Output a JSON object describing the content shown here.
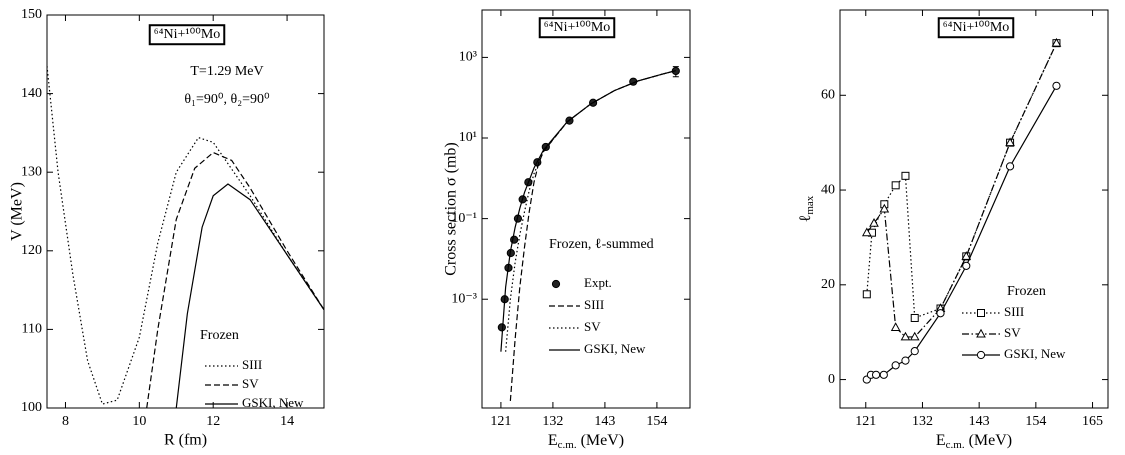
{
  "chart_data": [
    {
      "type": "line",
      "title": "⁶⁴Ni+¹⁰⁰Mo",
      "annotations": [
        "T=1.29 MeV",
        "θ₁=90⁰, θ₂=90⁰"
      ],
      "x_label": "R (fm)",
      "y_label": "V (MeV)",
      "xlim": [
        7.5,
        15
      ],
      "xticks": [
        8,
        10,
        12,
        14
      ],
      "ylim": [
        100,
        150
      ],
      "yticks": [
        100,
        110,
        120,
        130,
        140,
        150
      ],
      "legend_title": "Frozen",
      "series": [
        {
          "name": "SIII",
          "color": "#000000",
          "style": "dotted",
          "x": [
            7.5,
            7.8,
            8.2,
            8.6,
            9.0,
            9.4,
            10,
            10.5,
            11,
            11.6,
            12,
            13,
            14,
            15
          ],
          "values": [
            143.5,
            130,
            117,
            106,
            100.5,
            101,
            109,
            121,
            130,
            134.4,
            133.8,
            127,
            119.5,
            112.5
          ]
        },
        {
          "name": "SV",
          "color": "#000000",
          "style": "dashed",
          "x": [
            10.2,
            10.5,
            11,
            11.5,
            12,
            12.5,
            13,
            14,
            15
          ],
          "values": [
            100,
            110,
            124,
            130.5,
            132.5,
            131.5,
            128,
            120,
            112.5
          ]
        },
        {
          "name": "GSKI, New",
          "color": "#000000",
          "style": "solid",
          "x": [
            11.0,
            11.3,
            11.7,
            12.0,
            12.4,
            13,
            14,
            15
          ],
          "values": [
            100,
            112,
            123,
            127,
            128.5,
            126.5,
            119.5,
            112.5
          ]
        }
      ]
    },
    {
      "type": "line",
      "title": "⁶⁴Ni+¹⁰⁰Mo",
      "legend_title": "Frozen, ℓ-summed",
      "x_label": {
        "symbol": "E",
        "subscript": "c.m.",
        "unit": "(MeV)"
      },
      "y_label": "Cross section σ (mb)",
      "xlim": [
        117,
        161
      ],
      "xticks": [
        121,
        132,
        143,
        154
      ],
      "log_y": true,
      "ylim": [
        2e-06,
        15000
      ],
      "yticks": [
        {
          "value": 0.001,
          "label": "10⁻³"
        },
        {
          "value": 0.1,
          "label": "10⁻¹"
        },
        {
          "value": 10,
          "label": "10¹"
        },
        {
          "value": 1000,
          "label": "10³"
        }
      ],
      "series": [
        {
          "name": "Expt.",
          "color": "#000000",
          "style": "none",
          "marker": "circle",
          "marker_fill": "#222222",
          "x": [
            121.2,
            121.8,
            122.6,
            123.1,
            123.8,
            124.6,
            125.6,
            126.8,
            128.7,
            130.5,
            135.5,
            140.5,
            149,
            158
          ],
          "values": [
            0.0002,
            0.001,
            0.006,
            0.014,
            0.03,
            0.1,
            0.3,
            0.8,
            2.5,
            6,
            27,
            75,
            250,
            460
          ],
          "errors": [
            0,
            0,
            0,
            0,
            0,
            0,
            0,
            0,
            0,
            0,
            0,
            0,
            0,
            130
          ]
        },
        {
          "name": "SIII",
          "color": "#000000",
          "style": "dashed",
          "x": [
            123,
            124,
            125,
            126,
            127,
            128,
            129,
            130,
            135,
            140,
            145,
            150,
            155,
            158
          ],
          "values": [
            3e-06,
            0.0001,
            0.002,
            0.02,
            0.15,
            0.8,
            2.4,
            4.6,
            25,
            70,
            150,
            260,
            380,
            470
          ]
        },
        {
          "name": "SV",
          "color": "#000000",
          "style": "dotted",
          "x": [
            122,
            123,
            124,
            125,
            126,
            127,
            128,
            130,
            135,
            140,
            145,
            150,
            155,
            158
          ],
          "values": [
            5e-05,
            0.001,
            0.008,
            0.04,
            0.15,
            0.5,
            1.3,
            4.6,
            25,
            70,
            150,
            260,
            380,
            470
          ]
        },
        {
          "name": "GSKI, New",
          "color": "#000000",
          "style": "solid",
          "x": [
            121,
            122,
            123,
            124,
            125,
            126,
            128,
            130,
            135,
            140,
            145,
            150,
            155,
            158
          ],
          "values": [
            5e-05,
            0.002,
            0.015,
            0.06,
            0.18,
            0.45,
            1.8,
            5,
            25,
            70,
            150,
            260,
            380,
            470
          ]
        }
      ]
    },
    {
      "type": "line",
      "title": "⁶⁴Ni+¹⁰⁰Mo",
      "legend_title": "Frozen",
      "x_label": {
        "symbol": "E",
        "subscript": "c.m.",
        "unit": "(MeV)"
      },
      "y_label": {
        "symbol": "ℓ",
        "subscript": "max"
      },
      "xlim": [
        116,
        168
      ],
      "xticks": [
        121,
        132,
        143,
        154,
        165
      ],
      "ylim": [
        -6,
        78
      ],
      "yticks": [
        0,
        20,
        40,
        60
      ],
      "series": [
        {
          "name": "SIII",
          "color": "#000000",
          "style": "dotted",
          "marker": "square",
          "marker_fill": "#ffffff",
          "x": [
            121.2,
            122.2,
            124.6,
            126.8,
            128.7,
            130.5,
            135.5,
            140.5,
            149,
            158
          ],
          "values": [
            18,
            31,
            37,
            41,
            43,
            13,
            15,
            26,
            50,
            71
          ]
        },
        {
          "name": "SV",
          "color": "#000000",
          "style": "dashdot",
          "marker": "triangle",
          "marker_fill": "#ffffff",
          "x": [
            121.2,
            122.6,
            124.6,
            126.8,
            128.7,
            130.5,
            135.5,
            140.5,
            149,
            158
          ],
          "values": [
            31,
            33,
            36,
            11,
            9,
            9,
            15,
            26,
            50,
            71
          ]
        },
        {
          "name": "GSKI, New",
          "color": "#000000",
          "style": "solid",
          "marker": "circle",
          "marker_fill": "#ffffff",
          "x": [
            121.2,
            122,
            123,
            124.5,
            126.8,
            128.7,
            130.5,
            135.5,
            140.5,
            149,
            158
          ],
          "values": [
            0,
            1,
            1,
            1,
            3,
            4,
            6,
            14,
            24,
            45,
            62
          ]
        }
      ]
    }
  ]
}
